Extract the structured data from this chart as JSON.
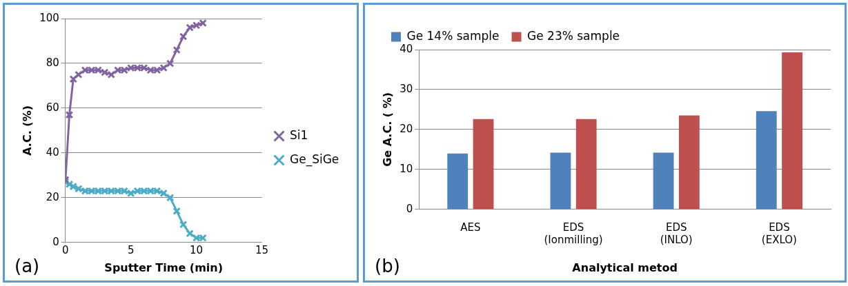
{
  "chart_data": [
    {
      "type": "line",
      "xlabel": "Sputter Time (min)",
      "ylabel": "A.C. (%)",
      "annotations": [
        "(a)"
      ],
      "x": [
        0,
        0.3,
        0.6,
        1,
        1.5,
        2,
        2.5,
        3,
        3.5,
        4,
        4.5,
        5,
        5.5,
        6,
        6.5,
        7,
        7.5,
        8,
        8.5,
        9,
        9.5,
        10,
        10.5
      ],
      "series": [
        {
          "name": "Si1",
          "color": "#8064a2",
          "marker": "cross",
          "values": [
            28,
            57,
            73,
            75,
            77,
            77,
            77,
            76,
            75,
            77,
            77,
            78,
            78,
            78,
            77,
            77,
            78,
            80,
            86,
            92,
            96,
            97,
            98
          ]
        },
        {
          "name": "Ge_SiGe",
          "color": "#4bacc6",
          "marker": "cross",
          "values": [
            27,
            26,
            25,
            24,
            23,
            23,
            23,
            23,
            23,
            23,
            23,
            22,
            23,
            23,
            23,
            23,
            22,
            20,
            14,
            8,
            4,
            2,
            2
          ]
        }
      ],
      "xlim": [
        0,
        15
      ],
      "xticks": [
        0,
        5,
        10,
        15
      ],
      "ylim": [
        0,
        100
      ],
      "yticks": [
        0,
        20,
        40,
        60,
        80,
        100
      ],
      "grid": "y",
      "legend": "right",
      "line_style": "solid"
    },
    {
      "type": "bar",
      "xlabel": "Analytical metod",
      "ylabel": "Ge A.C. ( %)",
      "annotations": [
        "(b)"
      ],
      "categories": [
        "AES",
        "EDS\n(Ionmilling)",
        "EDS\n(INLO)",
        "EDS\n(EXLO)"
      ],
      "series": [
        {
          "name": "Ge 14% sample",
          "color": "#4f81bd",
          "values": [
            14,
            14.2,
            14.2,
            24.6
          ]
        },
        {
          "name": "Ge 23% sample",
          "color": "#c0504d",
          "values": [
            22.6,
            22.6,
            23.5,
            39.3
          ]
        }
      ],
      "ylim": [
        0,
        40
      ],
      "yticks": [
        0,
        10,
        20,
        30,
        40
      ],
      "grid": "y",
      "legend": "top left"
    }
  ]
}
